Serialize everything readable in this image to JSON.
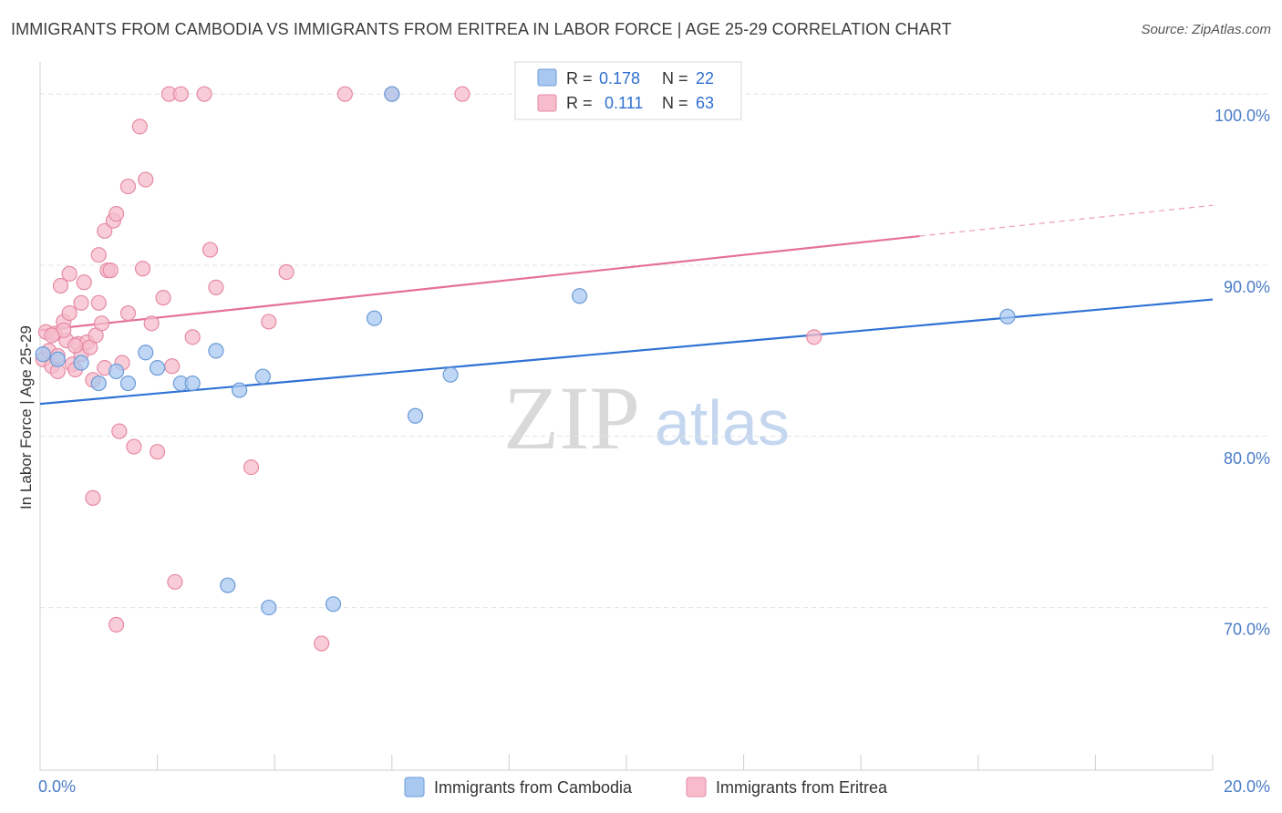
{
  "header": {
    "title": "IMMIGRANTS FROM CAMBODIA VS IMMIGRANTS FROM ERITREA IN LABOR FORCE | AGE 25-29 CORRELATION CHART",
    "source": "Source: ZipAtlas.com"
  },
  "watermark": {
    "zip": "ZIP",
    "atlas": "atlas"
  },
  "colors": {
    "cambodia_fill": "#a9c8f0",
    "cambodia_stroke": "#6a9bd8",
    "cambodia_line": "#2f72d4",
    "eritrea_fill": "#f6bccb",
    "eritrea_stroke": "#e68aa3",
    "eritrea_line": "#e5709a",
    "grid": "#e3e3e3",
    "tick_text": "#4a7cc7"
  },
  "legend": {
    "rows": [
      {
        "r_label": "R =",
        "r_value": "0.178",
        "n_label": "N =",
        "n_value": "22"
      },
      {
        "r_label": "R =",
        "r_value": "0.111",
        "n_label": "N =",
        "n_value": "63"
      }
    ]
  },
  "chart_data": {
    "type": "scatter",
    "title": "IMMIGRANTS FROM CAMBODIA VS IMMIGRANTS FROM ERITREA IN LABOR FORCE | AGE 25-29 CORRELATION CHART",
    "xlabel": "",
    "ylabel": "In Labor Force | Age 25-29",
    "xlim": [
      0,
      20
    ],
    "ylim": [
      60.5,
      101.5
    ],
    "x_tick_labels": [
      "0.0%",
      "20.0%"
    ],
    "y_ticks": [
      70,
      80,
      90,
      100
    ],
    "y_tick_labels": [
      "70.0%",
      "80.0%",
      "90.0%",
      "100.0%"
    ],
    "grid": true,
    "legend_position": "bottom",
    "series": [
      {
        "name": "Immigrants from Cambodia",
        "points": [
          [
            0.05,
            84.8
          ],
          [
            0.3,
            84.5
          ],
          [
            0.7,
            84.3
          ],
          [
            1.0,
            83.1
          ],
          [
            1.3,
            83.8
          ],
          [
            1.5,
            83.1
          ],
          [
            1.8,
            84.9
          ],
          [
            2.0,
            84.0
          ],
          [
            2.4,
            83.1
          ],
          [
            2.6,
            83.1
          ],
          [
            3.0,
            85.0
          ],
          [
            3.4,
            82.7
          ],
          [
            3.8,
            83.5
          ],
          [
            5.7,
            86.9
          ],
          [
            6.4,
            81.2
          ],
          [
            7.0,
            83.6
          ],
          [
            6.0,
            100.0
          ],
          [
            9.2,
            88.2
          ],
          [
            16.5,
            87.0
          ],
          [
            3.2,
            71.3
          ],
          [
            3.9,
            70.0
          ],
          [
            5.0,
            70.2
          ]
        ],
        "trend": {
          "x0": 0,
          "y0": 81.9,
          "x1": 20,
          "y1": 88.0
        }
      },
      {
        "name": "Immigrants from Eritrea",
        "points": [
          [
            0.05,
            84.5
          ],
          [
            0.1,
            86.1
          ],
          [
            0.15,
            85.0
          ],
          [
            0.2,
            84.1
          ],
          [
            0.25,
            86.0
          ],
          [
            0.3,
            83.8
          ],
          [
            0.35,
            88.8
          ],
          [
            0.4,
            86.7
          ],
          [
            0.45,
            85.6
          ],
          [
            0.5,
            87.2
          ],
          [
            0.5,
            89.5
          ],
          [
            0.55,
            84.2
          ],
          [
            0.6,
            83.9
          ],
          [
            0.65,
            85.4
          ],
          [
            0.7,
            84.8
          ],
          [
            0.7,
            87.8
          ],
          [
            0.75,
            89.0
          ],
          [
            0.8,
            85.5
          ],
          [
            0.85,
            85.2
          ],
          [
            0.9,
            83.3
          ],
          [
            0.95,
            85.9
          ],
          [
            1.0,
            87.8
          ],
          [
            1.0,
            90.6
          ],
          [
            1.05,
            86.6
          ],
          [
            1.1,
            84.0
          ],
          [
            1.1,
            92.0
          ],
          [
            1.15,
            89.7
          ],
          [
            1.2,
            89.7
          ],
          [
            1.25,
            92.6
          ],
          [
            1.3,
            93.0
          ],
          [
            1.35,
            80.3
          ],
          [
            1.4,
            84.3
          ],
          [
            1.5,
            87.2
          ],
          [
            1.5,
            94.6
          ],
          [
            1.6,
            79.4
          ],
          [
            1.7,
            98.1
          ],
          [
            1.75,
            89.8
          ],
          [
            1.8,
            95.0
          ],
          [
            1.9,
            86.6
          ],
          [
            2.0,
            79.1
          ],
          [
            2.1,
            88.1
          ],
          [
            2.2,
            100.0
          ],
          [
            2.25,
            84.1
          ],
          [
            2.3,
            71.5
          ],
          [
            2.4,
            100.0
          ],
          [
            2.6,
            85.8
          ],
          [
            2.8,
            100.0
          ],
          [
            2.9,
            90.9
          ],
          [
            3.0,
            88.7
          ],
          [
            3.6,
            78.2
          ],
          [
            3.9,
            86.7
          ],
          [
            4.2,
            89.6
          ],
          [
            4.8,
            67.9
          ],
          [
            5.2,
            100.0
          ],
          [
            6.0,
            100.0
          ],
          [
            0.9,
            76.4
          ],
          [
            1.3,
            69.0
          ],
          [
            0.3,
            84.7
          ],
          [
            0.6,
            85.3
          ],
          [
            0.4,
            86.2
          ],
          [
            0.2,
            85.9
          ],
          [
            7.2,
            100.0
          ],
          [
            13.2,
            85.8
          ]
        ],
        "trend": {
          "x0": 0,
          "y0": 86.2,
          "x1": 15.0,
          "y1": 91.7
        },
        "trend_dashed": {
          "x0": 15.0,
          "y0": 91.7,
          "x1": 20,
          "y1": 93.5
        }
      }
    ]
  }
}
